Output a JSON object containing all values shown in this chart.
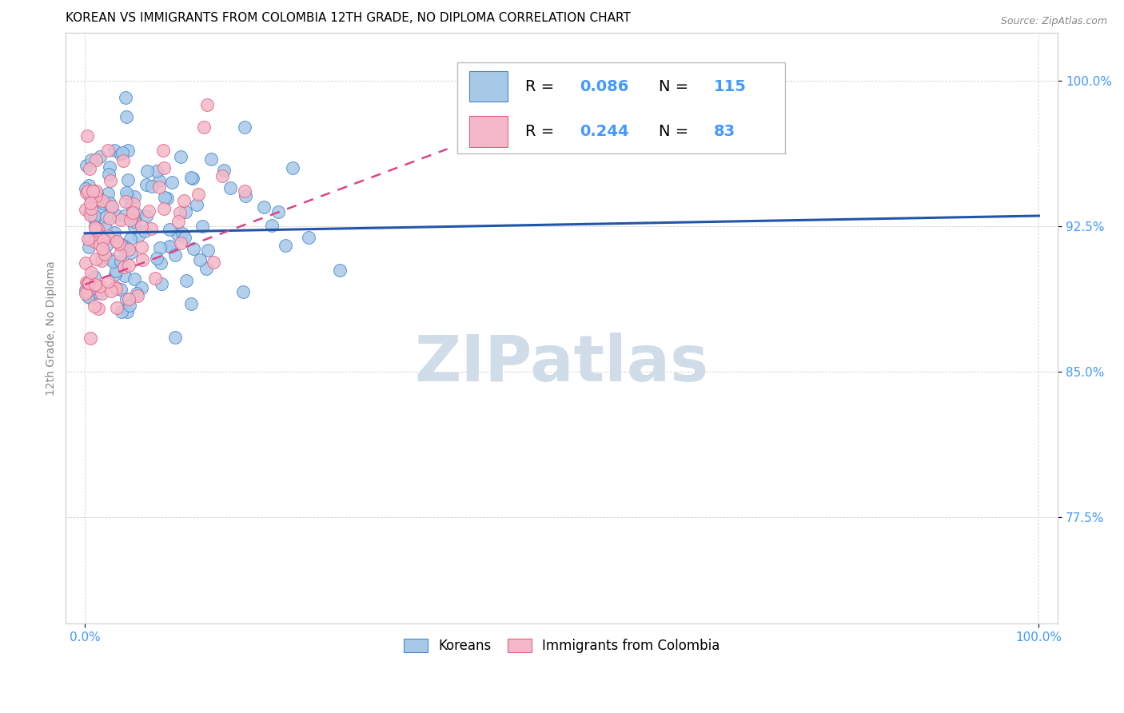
{
  "title": "KOREAN VS IMMIGRANTS FROM COLOMBIA 12TH GRADE, NO DIPLOMA CORRELATION CHART",
  "source": "Source: ZipAtlas.com",
  "ylabel_label": "12th Grade, No Diploma",
  "legend_labels": [
    "Koreans",
    "Immigrants from Colombia"
  ],
  "korean_R": 0.086,
  "korean_N": 115,
  "colombia_R": 0.244,
  "colombia_N": 83,
  "blue_scatter_color": "#a8c8e8",
  "blue_edge_color": "#4488cc",
  "pink_scatter_color": "#f4b8c8",
  "pink_edge_color": "#e06080",
  "blue_line_color": "#2255aa",
  "pink_line_color": "#dd4488",
  "tick_color": "#4499ff",
  "ylabel_color": "#888888",
  "watermark_color": "#d0dde8",
  "watermark_text": "ZIPatlas",
  "ytick_vals": [
    0.775,
    0.85,
    0.925,
    1.0
  ],
  "ytick_labels": [
    "77.5%",
    "85.0%",
    "92.5%",
    "100.0%"
  ],
  "xtick_vals": [
    0.0,
    1.0
  ],
  "xtick_labels": [
    "0.0%",
    "100.0%"
  ],
  "xlim": [
    -0.02,
    1.02
  ],
  "ylim": [
    0.72,
    1.025
  ],
  "blue_line_y0": 0.9215,
  "blue_line_y1": 0.9305,
  "pink_line_x0": 0.0,
  "pink_line_y0": 0.895,
  "pink_line_x1": 0.38,
  "pink_line_y1": 0.965
}
